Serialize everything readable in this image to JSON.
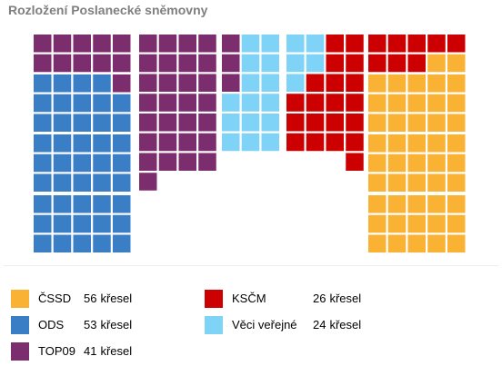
{
  "title": "Rozložení Poslanecké sněmovny",
  "chart_data": {
    "type": "seat-grid",
    "title": "Rozložení Poslanecké sněmovny",
    "total_seats": 200,
    "unit": "křesel",
    "parties": [
      {
        "name": "ČSSD",
        "seats": 56,
        "color": "#f9b233"
      },
      {
        "name": "ODS",
        "seats": 53,
        "color": "#3a7fc5"
      },
      {
        "name": "TOP09",
        "seats": 41,
        "color": "#7b2d6e"
      },
      {
        "name": "KSČM",
        "seats": 26,
        "color": "#cc0000"
      },
      {
        "name": "Věci veřejné",
        "seats": 24,
        "color": "#7fd3f7"
      }
    ]
  }
}
